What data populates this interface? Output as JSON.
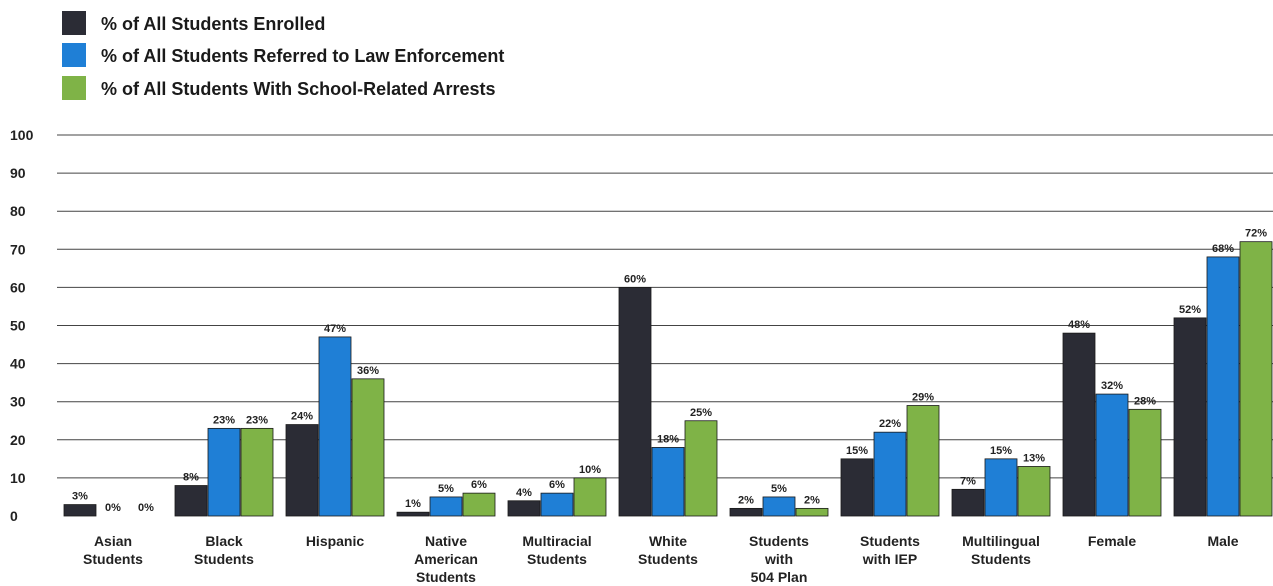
{
  "chart_data": {
    "type": "bar",
    "title": "",
    "xlabel": "",
    "ylabel": "",
    "ylim": [
      0,
      100
    ],
    "yticks": [
      0,
      10,
      20,
      30,
      40,
      50,
      60,
      70,
      80,
      90,
      100
    ],
    "grid": true,
    "legend_position": "top-left",
    "categories": [
      [
        "Asian",
        "Students"
      ],
      [
        "Black",
        "Students"
      ],
      [
        "Hispanic"
      ],
      [
        "Native",
        "American",
        "Students"
      ],
      [
        "Multiracial",
        "Students"
      ],
      [
        "White",
        "Students"
      ],
      [
        "Students",
        "with",
        "504 Plan"
      ],
      [
        "Students",
        "with IEP"
      ],
      [
        "Multilingual",
        "Students"
      ],
      [
        "Female"
      ],
      [
        "Male"
      ]
    ],
    "series": [
      {
        "name": "% of All Students Enrolled",
        "color": "#2b2c35",
        "values": [
          3,
          8,
          24,
          1,
          4,
          60,
          2,
          15,
          7,
          48,
          52
        ],
        "labels": [
          "3%",
          "8%",
          "24%",
          "1%",
          "4%",
          "60%",
          "2%",
          "15%",
          "7%",
          "48%",
          "52%"
        ]
      },
      {
        "name": "% of All Students Referred to Law Enforcement",
        "color": "#1f7fd6",
        "values": [
          0,
          23,
          47,
          5,
          6,
          18,
          5,
          22,
          15,
          32,
          68
        ],
        "labels": [
          "0%",
          "23%",
          "47%",
          "5%",
          "6%",
          "18%",
          "5%",
          "22%",
          "15%",
          "32%",
          "68%"
        ]
      },
      {
        "name": "% of All Students With School-Related Arrests",
        "color": "#7fb347",
        "values": [
          0,
          23,
          36,
          6,
          10,
          25,
          2,
          29,
          13,
          28,
          72
        ],
        "labels": [
          "0%",
          "23%",
          "36%",
          "6%",
          "10%",
          "25%",
          "2%",
          "29%",
          "13%",
          "28%",
          "72%"
        ]
      }
    ]
  }
}
